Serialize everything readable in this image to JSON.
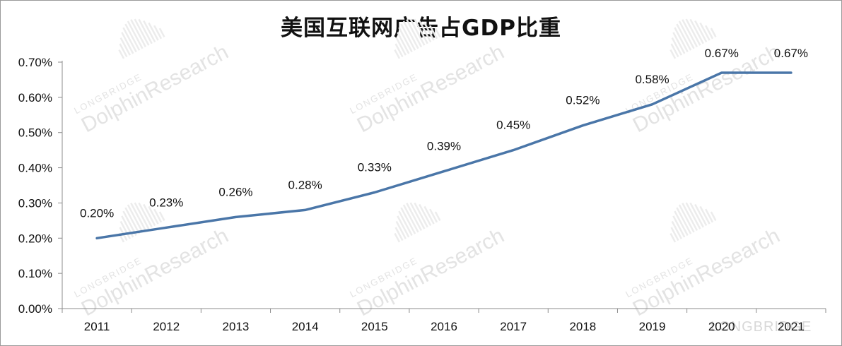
{
  "chart_data": {
    "type": "line",
    "title": "美国互联网广告占GDP比重",
    "xlabel": "",
    "ylabel": "",
    "categories": [
      "2011",
      "2012",
      "2013",
      "2014",
      "2015",
      "2016",
      "2017",
      "2018",
      "2019",
      "2020",
      "2021"
    ],
    "series": [
      {
        "values": [
          0.2,
          0.23,
          0.26,
          0.28,
          0.33,
          0.39,
          0.45,
          0.52,
          0.58,
          0.67,
          0.67
        ],
        "labels": [
          "0.20%",
          "0.23%",
          "0.26%",
          "0.28%",
          "0.33%",
          "0.39%",
          "0.45%",
          "0.52%",
          "0.58%",
          "0.67%",
          "0.67%"
        ],
        "color": "#4a76a8"
      }
    ],
    "ylim": [
      0,
      0.7
    ],
    "yticks": [
      0,
      0.1,
      0.2,
      0.3,
      0.4,
      0.5,
      0.6,
      0.7
    ],
    "ytick_labels": [
      "0.00%",
      "0.10%",
      "0.20%",
      "0.30%",
      "0.40%",
      "0.50%",
      "0.60%",
      "0.70%"
    ],
    "grid": false,
    "legend": "none"
  },
  "watermark": {
    "line1": "LONGBRIDGE",
    "line2": "DolphinResearch",
    "corner_text": "LONGBRIDGE"
  }
}
